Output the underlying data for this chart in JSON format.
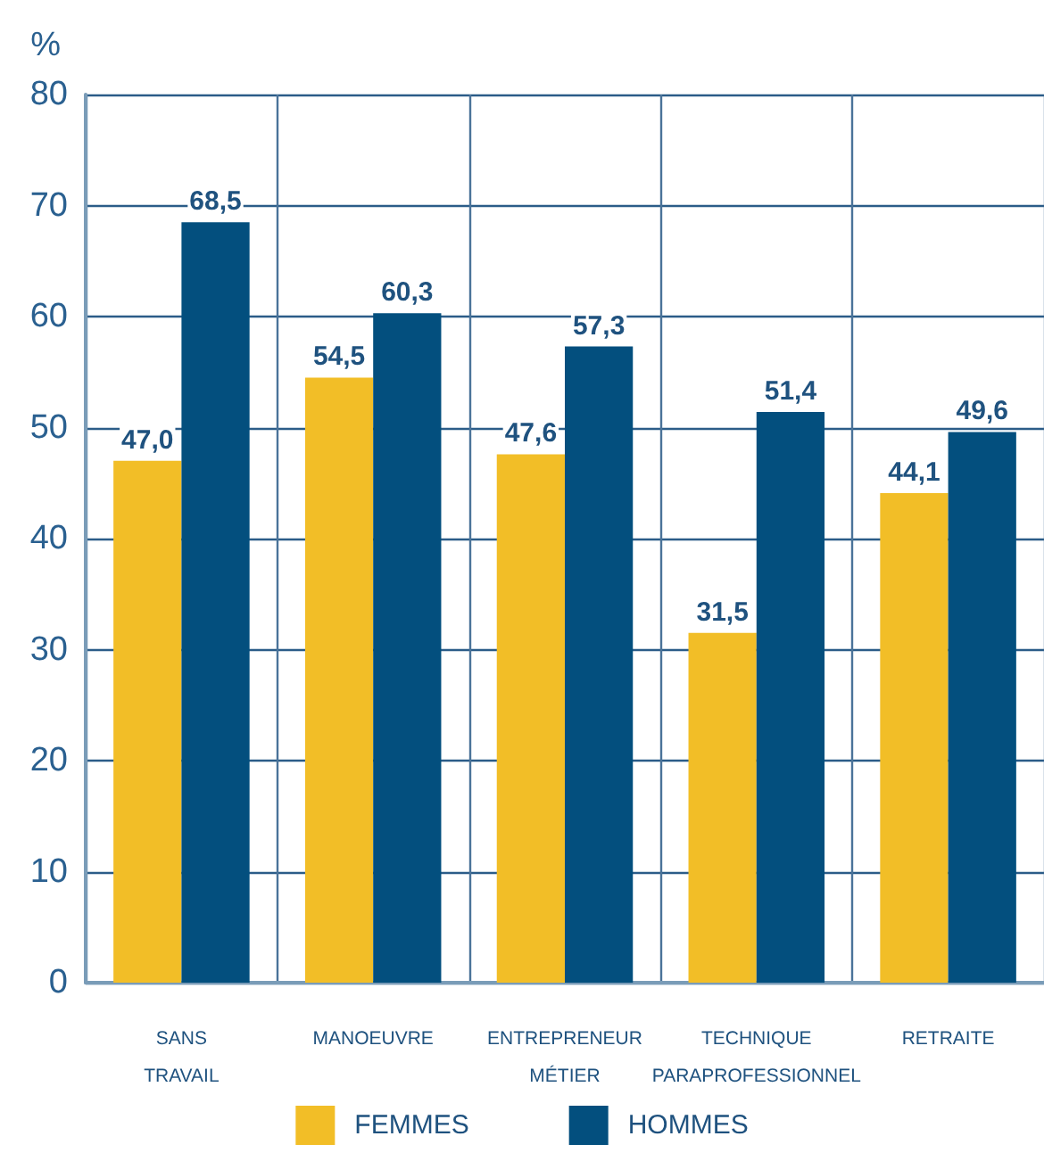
{
  "chart_data": {
    "type": "bar",
    "ylabel": "%",
    "categories": [
      "SANS\nTRAVAIL",
      "MANOEUVRE",
      "ENTREPRENEUR\nMÉTIER",
      "TECHNIQUE\nPARAPROFESSIONNEL",
      "RETRAITE"
    ],
    "series": [
      {
        "name": "FEMMES",
        "color": "#f2be27",
        "values": [
          47.0,
          54.5,
          47.6,
          31.5,
          44.1
        ],
        "value_labels": [
          "47,0",
          "54,5",
          "47,6",
          "31,5",
          "44,1"
        ]
      },
      {
        "name": "HOMMES",
        "color": "#034f7e",
        "values": [
          68.5,
          60.3,
          57.3,
          51.4,
          49.6
        ],
        "value_labels": [
          "68,5",
          "60,3",
          "57,3",
          "51,4",
          "49,6"
        ]
      }
    ],
    "ylim": [
      0,
      80
    ],
    "yticks": [
      0,
      10,
      20,
      30,
      40,
      50,
      60,
      70,
      80
    ],
    "grid": true,
    "legend": "bottom"
  }
}
